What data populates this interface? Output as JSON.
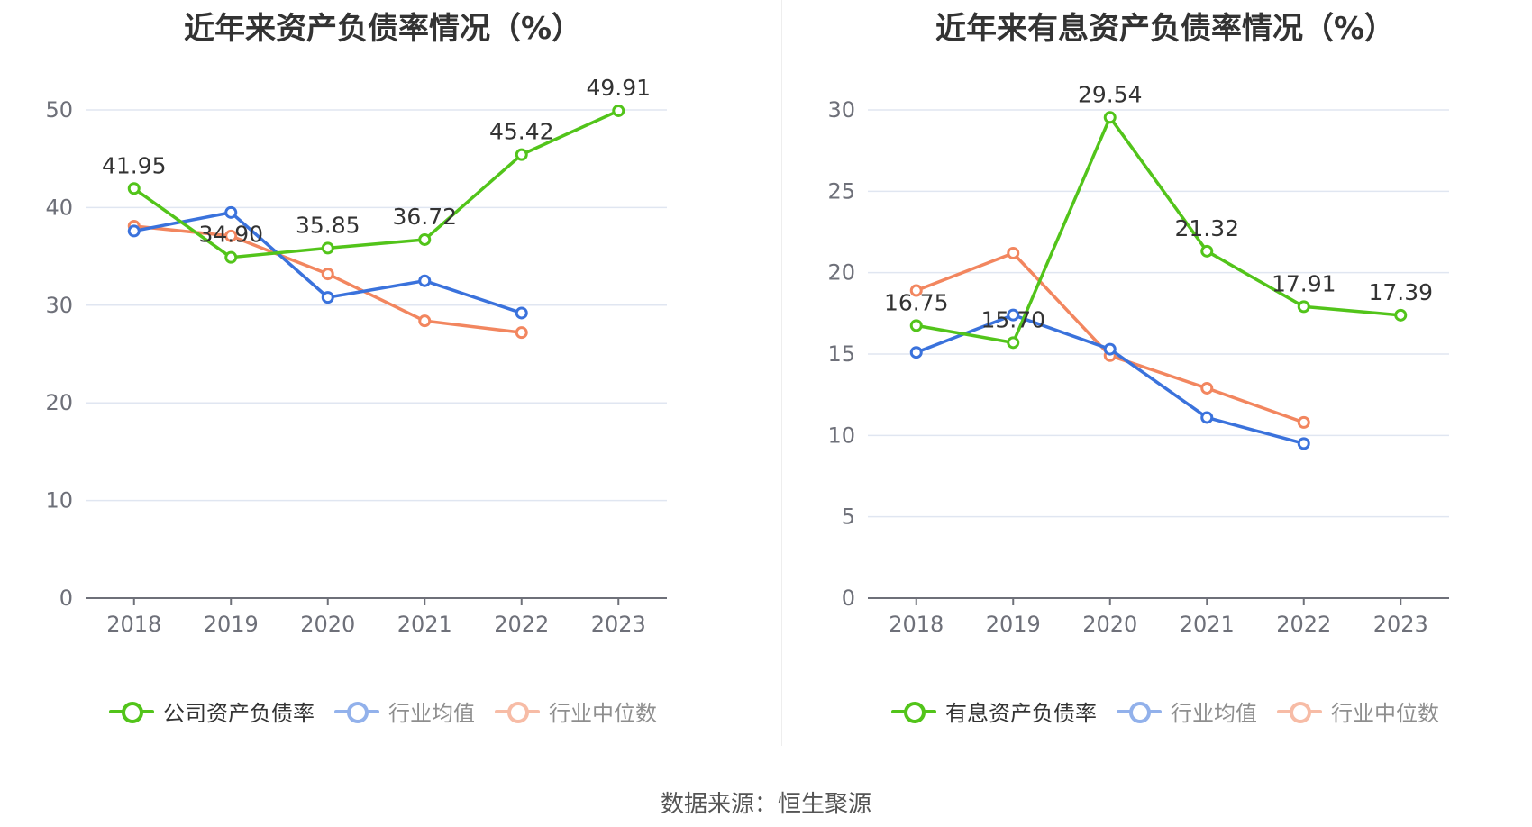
{
  "colors": {
    "company": "#52c41a",
    "avg": "#3a72dc",
    "median": "#f2865f",
    "grid": "#e0e6f1",
    "axis": "#6e7079",
    "text": "#333333"
  },
  "chart_data": [
    {
      "type": "line",
      "title": "近年来资产负债率情况（%）",
      "categories": [
        "2018",
        "2019",
        "2020",
        "2021",
        "2022",
        "2023"
      ],
      "ylim": [
        0,
        50
      ],
      "yticks": [
        0,
        10,
        20,
        30,
        40,
        50
      ],
      "grid": true,
      "legend_position": "bottom",
      "series": [
        {
          "name": "公司资产负债率",
          "color": "company",
          "values": [
            41.95,
            34.9,
            35.85,
            36.72,
            45.42,
            49.91
          ],
          "labels": [
            "41.95",
            "34.90",
            "35.85",
            "36.72",
            "45.42",
            "49.91"
          ]
        },
        {
          "name": "行业均值",
          "color": "avg",
          "values": [
            37.6,
            39.5,
            30.8,
            32.5,
            29.2,
            null
          ]
        },
        {
          "name": "行业中位数",
          "color": "median",
          "values": [
            38.1,
            37.1,
            33.2,
            28.4,
            27.2,
            null
          ]
        }
      ]
    },
    {
      "type": "line",
      "title": "近年来有息资产负债率情况（%）",
      "categories": [
        "2018",
        "2019",
        "2020",
        "2021",
        "2022",
        "2023"
      ],
      "ylim": [
        0,
        30
      ],
      "yticks": [
        0,
        5,
        10,
        15,
        20,
        25,
        30
      ],
      "grid": true,
      "legend_position": "bottom",
      "series": [
        {
          "name": "有息资产负债率",
          "color": "company",
          "values": [
            16.75,
            15.7,
            29.54,
            21.32,
            17.91,
            17.39
          ],
          "labels": [
            "16.75",
            "15.70",
            "29.54",
            "21.32",
            "17.91",
            "17.39"
          ]
        },
        {
          "name": "行业均值",
          "color": "avg",
          "values": [
            15.1,
            17.4,
            15.3,
            11.1,
            9.5,
            null
          ]
        },
        {
          "name": "行业中位数",
          "color": "median",
          "values": [
            18.9,
            21.2,
            14.9,
            12.9,
            10.8,
            null
          ]
        }
      ]
    }
  ],
  "source": "数据来源：恒生聚源"
}
